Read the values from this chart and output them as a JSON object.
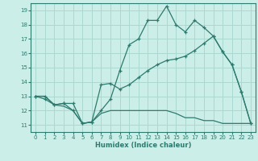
{
  "xlabel": "Humidex (Indice chaleur)",
  "bg_color": "#cceee8",
  "grid_color": "#aad8d0",
  "line_color": "#2d7a6e",
  "xlim": [
    -0.5,
    23.5
  ],
  "ylim": [
    10.5,
    19.5
  ],
  "xticks": [
    0,
    1,
    2,
    3,
    4,
    5,
    6,
    7,
    8,
    9,
    10,
    11,
    12,
    13,
    14,
    15,
    16,
    17,
    18,
    19,
    20,
    21,
    22,
    23
  ],
  "yticks": [
    11,
    12,
    13,
    14,
    15,
    16,
    17,
    18,
    19
  ],
  "line1_x": [
    0,
    1,
    2,
    3,
    4,
    5,
    6,
    7,
    8,
    9,
    10,
    11,
    12,
    13,
    14,
    15,
    16,
    17,
    18,
    19,
    20,
    21,
    22,
    23
  ],
  "line1_y": [
    13.0,
    12.8,
    12.4,
    12.5,
    12.0,
    11.1,
    11.2,
    12.0,
    12.8,
    14.8,
    16.6,
    17.0,
    18.3,
    18.3,
    19.3,
    18.0,
    17.5,
    18.3,
    17.8,
    17.2,
    16.1,
    15.2,
    13.3,
    11.1
  ],
  "line2_x": [
    0,
    1,
    2,
    3,
    4,
    5,
    6,
    7,
    8,
    9,
    10,
    11,
    12,
    13,
    14,
    15,
    16,
    17,
    18,
    19,
    20,
    21,
    22,
    23
  ],
  "line2_y": [
    13.0,
    13.0,
    12.4,
    12.5,
    12.5,
    11.1,
    11.2,
    13.8,
    13.9,
    13.5,
    13.8,
    14.3,
    14.8,
    15.2,
    15.5,
    15.6,
    15.8,
    16.2,
    16.7,
    17.2,
    16.1,
    15.2,
    13.3,
    11.1
  ],
  "line3_x": [
    0,
    1,
    2,
    3,
    4,
    5,
    6,
    7,
    8,
    9,
    10,
    11,
    12,
    13,
    14,
    15,
    16,
    17,
    18,
    19,
    20,
    21,
    22,
    23
  ],
  "line3_y": [
    13.0,
    13.0,
    12.4,
    12.3,
    12.0,
    11.1,
    11.2,
    11.8,
    12.0,
    12.0,
    12.0,
    12.0,
    12.0,
    12.0,
    12.0,
    11.8,
    11.5,
    11.5,
    11.3,
    11.3,
    11.1,
    11.1,
    11.1,
    11.1
  ]
}
